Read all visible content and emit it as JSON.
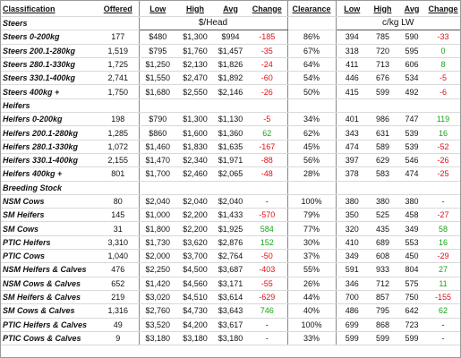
{
  "header": {
    "columns": [
      "Classification",
      "Offered",
      "Low",
      "High",
      "Avg",
      "Change",
      "Clearance",
      "Low",
      "High",
      "Avg",
      "Change"
    ],
    "units": [
      "$/Head",
      "c/kg LW"
    ]
  },
  "sections": [
    {
      "title": "Steers",
      "rows": [
        [
          "Steers 0-200kg",
          "177",
          "$480",
          "$1,300",
          "$994",
          "-185",
          "86%",
          "394",
          "785",
          "590",
          "-33"
        ],
        [
          "Steers 200.1-280kg",
          "1,519",
          "$795",
          "$1,760",
          "$1,457",
          "-35",
          "67%",
          "318",
          "720",
          "595",
          "0"
        ],
        [
          "Steers 280.1-330kg",
          "1,725",
          "$1,250",
          "$2,130",
          "$1,826",
          "-24",
          "64%",
          "411",
          "713",
          "606",
          "8"
        ],
        [
          "Steers 330.1-400kg",
          "2,741",
          "$1,550",
          "$2,470",
          "$1,892",
          "-60",
          "54%",
          "446",
          "676",
          "534",
          "-5"
        ],
        [
          "Steers 400kg +",
          "1,750",
          "$1,680",
          "$2,550",
          "$2,146",
          "-26",
          "50%",
          "415",
          "599",
          "492",
          "-6"
        ]
      ]
    },
    {
      "title": "Heifers",
      "rows": [
        [
          "Heifers 0-200kg",
          "198",
          "$790",
          "$1,300",
          "$1,130",
          "-5",
          "34%",
          "401",
          "986",
          "747",
          "119"
        ],
        [
          "Heifers 200.1-280kg",
          "1,285",
          "$860",
          "$1,600",
          "$1,360",
          "62",
          "62%",
          "343",
          "631",
          "539",
          "16"
        ],
        [
          "Heifers 280.1-330kg",
          "1,072",
          "$1,460",
          "$1,830",
          "$1,635",
          "-167",
          "45%",
          "474",
          "589",
          "539",
          "-52"
        ],
        [
          "Heifers 330.1-400kg",
          "2,155",
          "$1,470",
          "$2,340",
          "$1,971",
          "-88",
          "56%",
          "397",
          "629",
          "546",
          "-26"
        ],
        [
          "Heifers 400kg +",
          "801",
          "$1,700",
          "$2,460",
          "$2,065",
          "-48",
          "28%",
          "378",
          "583",
          "474",
          "-25"
        ]
      ]
    },
    {
      "title": "Breeding Stock",
      "rows": [
        [
          "NSM Cows",
          "80",
          "$2,040",
          "$2,040",
          "$2,040",
          "-",
          "100%",
          "380",
          "380",
          "380",
          "-"
        ],
        [
          "SM Heifers",
          "145",
          "$1,000",
          "$2,200",
          "$1,433",
          "-570",
          "79%",
          "350",
          "525",
          "458",
          "-27"
        ],
        [
          "SM Cows",
          "31",
          "$1,800",
          "$2,200",
          "$1,925",
          "584",
          "77%",
          "320",
          "435",
          "349",
          "58"
        ],
        [
          "PTIC Heifers",
          "3,310",
          "$1,730",
          "$3,620",
          "$2,876",
          "152",
          "30%",
          "410",
          "689",
          "553",
          "16"
        ],
        [
          "PTIC Cows",
          "1,040",
          "$2,000",
          "$3,700",
          "$2,764",
          "-50",
          "37%",
          "349",
          "608",
          "450",
          "-29"
        ],
        [
          "NSM Heifers & Calves",
          "476",
          "$2,250",
          "$4,500",
          "$3,687",
          "-403",
          "55%",
          "591",
          "933",
          "804",
          "27"
        ],
        [
          "NSM Cows & Calves",
          "652",
          "$1,420",
          "$4,560",
          "$3,171",
          "-55",
          "26%",
          "346",
          "712",
          "575",
          "11"
        ],
        [
          "SM Heifers & Calves",
          "219",
          "$3,020",
          "$4,510",
          "$3,614",
          "-629",
          "44%",
          "700",
          "857",
          "750",
          "-155"
        ],
        [
          "SM Cows & Calves",
          "1,316",
          "$2,760",
          "$4,730",
          "$3,643",
          "746",
          "40%",
          "486",
          "795",
          "642",
          "62"
        ],
        [
          "PTIC Heifers & Calves",
          "49",
          "$3,520",
          "$4,200",
          "$3,617",
          "-",
          "100%",
          "699",
          "868",
          "723",
          "-"
        ],
        [
          "PTIC Cows & Calves",
          "9",
          "$3,180",
          "$3,180",
          "$3,180",
          "-",
          "33%",
          "599",
          "599",
          "599",
          "-"
        ]
      ]
    }
  ]
}
